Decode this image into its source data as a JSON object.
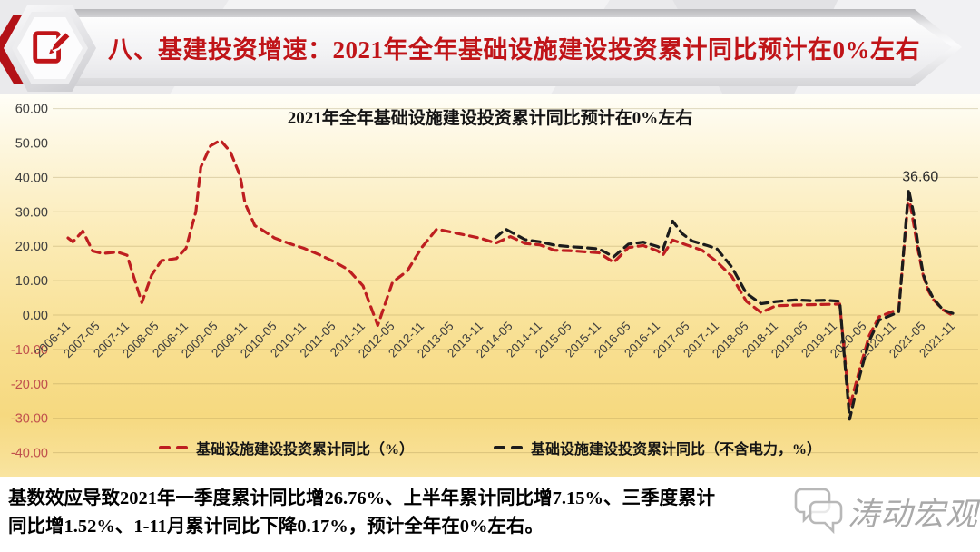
{
  "header": {
    "title": "八、基建投资增速：2021年全年基础设施建设投资累计同比预计在0%左右"
  },
  "chart_data": {
    "type": "line",
    "title": "2021年全年基础设施建设投资累计同比预计在0%左右",
    "xlabel": "",
    "ylabel": "",
    "ylim": [
      -40,
      60
    ],
    "y_ticks": [
      60,
      50,
      40,
      30,
      20,
      10,
      0,
      -10,
      -20,
      -30,
      -40
    ],
    "grid": true,
    "legend_position": "bottom",
    "negative_tick_color": "#c0504d",
    "positive_tick_color": "#3f3f3f",
    "x_tick_labels": [
      "2006-11",
      "2007-05",
      "2007-11",
      "2008-05",
      "2008-11",
      "2009-05",
      "2009-11",
      "2010-05",
      "2010-11",
      "2011-05",
      "2011-11",
      "2012-05",
      "2012-11",
      "2013-05",
      "2013-11",
      "2014-05",
      "2014-11",
      "2015-05",
      "2015-11",
      "2016-05",
      "2016-11",
      "2017-05",
      "2017-11",
      "2018-05",
      "2018-11",
      "2019-05",
      "2019-11",
      "2020-05",
      "2020-11",
      "2021-05",
      "2021-11"
    ],
    "annotation": {
      "text": "36.60",
      "x": "2021-02",
      "value": 36.6
    },
    "series": [
      {
        "name": "基础设施建设投资累计同比（%）",
        "color": "#be1e20",
        "dash": true,
        "points": [
          [
            "2006-11",
            22.4
          ],
          [
            "2006-12",
            21.3
          ],
          [
            "2007-02",
            24.4
          ],
          [
            "2007-04",
            18.6
          ],
          [
            "2007-06",
            17.9
          ],
          [
            "2007-09",
            18.3
          ],
          [
            "2007-11",
            17.4
          ],
          [
            "2008-02",
            3.6
          ],
          [
            "2008-04",
            11.6
          ],
          [
            "2008-06",
            15.8
          ],
          [
            "2008-09",
            16.4
          ],
          [
            "2008-11",
            19.4
          ],
          [
            "2009-01",
            30.0
          ],
          [
            "2009-02",
            43.0
          ],
          [
            "2009-04",
            49.2
          ],
          [
            "2009-06",
            50.8
          ],
          [
            "2009-08",
            47.5
          ],
          [
            "2009-10",
            40.5
          ],
          [
            "2009-11",
            32.5
          ],
          [
            "2010-01",
            26.0
          ],
          [
            "2010-02",
            25.2
          ],
          [
            "2010-05",
            22.4
          ],
          [
            "2010-08",
            20.8
          ],
          [
            "2010-11",
            19.4
          ],
          [
            "2011-02",
            17.6
          ],
          [
            "2011-05",
            15.6
          ],
          [
            "2011-08",
            13.2
          ],
          [
            "2011-11",
            8.5
          ],
          [
            "2012-02",
            -3.0
          ],
          [
            "2012-05",
            9.5
          ],
          [
            "2012-08",
            12.8
          ],
          [
            "2012-11",
            19.7
          ],
          [
            "2013-02",
            25.0
          ],
          [
            "2013-05",
            24.1
          ],
          [
            "2013-08",
            23.2
          ],
          [
            "2013-11",
            22.3
          ],
          [
            "2014-02",
            20.9
          ],
          [
            "2014-05",
            22.8
          ],
          [
            "2014-08",
            20.8
          ],
          [
            "2014-11",
            20.4
          ],
          [
            "2015-02",
            18.8
          ],
          [
            "2015-05",
            18.7
          ],
          [
            "2015-08",
            18.4
          ],
          [
            "2015-11",
            18.1
          ],
          [
            "2016-02",
            15.3
          ],
          [
            "2016-05",
            19.6
          ],
          [
            "2016-08",
            20.2
          ],
          [
            "2016-11",
            18.6
          ],
          [
            "2016-12",
            17.4
          ],
          [
            "2017-02",
            21.8
          ],
          [
            "2017-05",
            20.3
          ],
          [
            "2017-08",
            18.8
          ],
          [
            "2017-11",
            15.5
          ],
          [
            "2018-02",
            11.3
          ],
          [
            "2018-05",
            4.0
          ],
          [
            "2018-08",
            0.7
          ],
          [
            "2018-11",
            2.7
          ],
          [
            "2019-03",
            2.9
          ],
          [
            "2019-06",
            3.0
          ],
          [
            "2019-09",
            3.1
          ],
          [
            "2019-12",
            3.2
          ],
          [
            "2020-02",
            -26.9
          ],
          [
            "2020-04",
            -16.0
          ],
          [
            "2020-06",
            -6.0
          ],
          [
            "2020-08",
            -0.5
          ],
          [
            "2020-11",
            1.2
          ],
          [
            "2020-12",
            1.4
          ],
          [
            "2021-02",
            35.0
          ],
          [
            "2021-03",
            26.76
          ],
          [
            "2021-04",
            18.4
          ],
          [
            "2021-05",
            11.4
          ],
          [
            "2021-06",
            7.15
          ],
          [
            "2021-07",
            4.6
          ],
          [
            "2021-09",
            1.52
          ],
          [
            "2021-11",
            -0.17
          ]
        ]
      },
      {
        "name": "基础设施建设投资累计同比（不含电力，%）",
        "color": "#1c1c1c",
        "dash": true,
        "points": [
          [
            "2014-02",
            22.5
          ],
          [
            "2014-04",
            25.0
          ],
          [
            "2014-08",
            21.9
          ],
          [
            "2014-11",
            21.3
          ],
          [
            "2015-02",
            20.3
          ],
          [
            "2015-05",
            19.9
          ],
          [
            "2015-08",
            19.6
          ],
          [
            "2015-11",
            19.2
          ],
          [
            "2016-02",
            16.9
          ],
          [
            "2016-05",
            20.6
          ],
          [
            "2016-08",
            21.2
          ],
          [
            "2016-11",
            19.9
          ],
          [
            "2016-12",
            18.9
          ],
          [
            "2017-02",
            27.3
          ],
          [
            "2017-04",
            23.6
          ],
          [
            "2017-06",
            21.5
          ],
          [
            "2017-09",
            20.2
          ],
          [
            "2017-11",
            19.3
          ],
          [
            "2018-02",
            14.0
          ],
          [
            "2018-05",
            6.3
          ],
          [
            "2018-08",
            3.3
          ],
          [
            "2018-11",
            3.9
          ],
          [
            "2019-03",
            4.4
          ],
          [
            "2019-06",
            4.2
          ],
          [
            "2019-09",
            4.3
          ],
          [
            "2019-12",
            4.0
          ],
          [
            "2020-02",
            -30.3
          ],
          [
            "2020-04",
            -18.0
          ],
          [
            "2020-06",
            -7.5
          ],
          [
            "2020-08",
            -1.5
          ],
          [
            "2020-11",
            0.3
          ],
          [
            "2020-12",
            0.9
          ],
          [
            "2021-02",
            36.6
          ],
          [
            "2021-03",
            29.7
          ],
          [
            "2021-04",
            19.8
          ],
          [
            "2021-05",
            11.8
          ],
          [
            "2021-06",
            7.8
          ],
          [
            "2021-07",
            4.9
          ],
          [
            "2021-09",
            1.5
          ],
          [
            "2021-11",
            0.5
          ]
        ]
      }
    ]
  },
  "footer": {
    "line1": "基数效应导致2021年一季度累计同比增26.76%、上半年累计同比增7.15%、三季度累计",
    "line2": "同比增1.52%、1-11月累计同比下降0.17%，预计全年在0%左右。",
    "watermark_text": "涛动宏观"
  }
}
